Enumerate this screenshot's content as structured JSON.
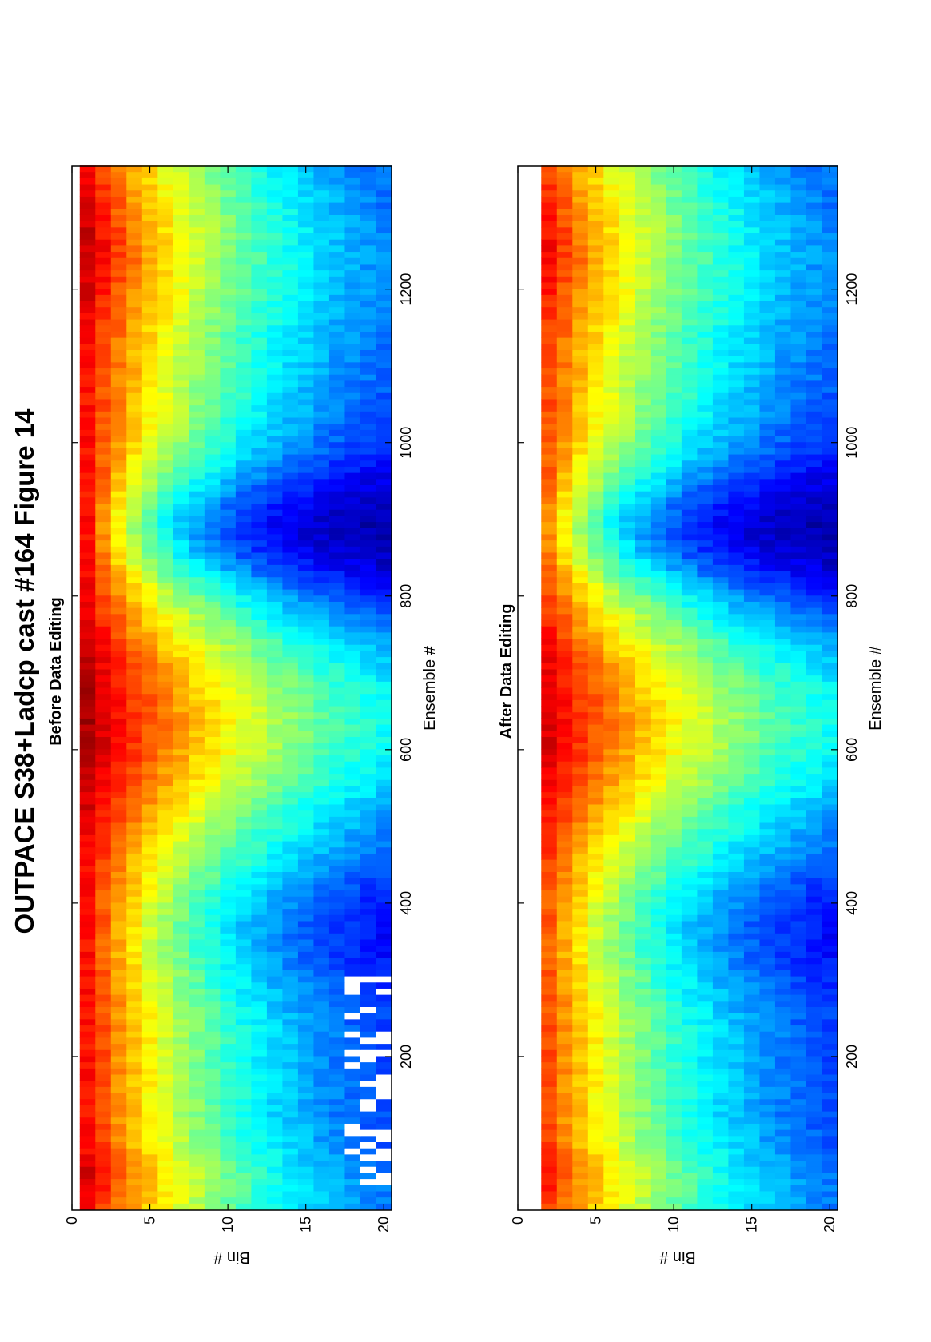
{
  "figure": {
    "title": "OUTPACE S38+Ladcp cast #164  Figure 14"
  },
  "chart_data": [
    {
      "type": "heatmap",
      "title": "Before Data Editing",
      "xlabel": "Ensemble #",
      "ylabel": "Bin #",
      "xlim": [
        0,
        1360
      ],
      "ylim": [
        0,
        20.5
      ],
      "x_ticks": [
        "200",
        "400",
        "600",
        "800",
        "1000",
        "1200"
      ],
      "y_ticks": [
        "0",
        "5",
        "10",
        "15",
        "20"
      ],
      "colormap": "jet",
      "features": {
        "ensemble_range": [
          1,
          1360
        ],
        "bin_range": [
          1,
          20
        ],
        "max_echo_ensembles": [
          40,
          560,
          700,
          1250
        ],
        "minimum_echo_ensemble_at_bottom_bins": 870,
        "invalid_data_ensembles": [
          30,
          300
        ]
      }
    },
    {
      "type": "heatmap",
      "title": "After Data Editing",
      "xlabel": "Ensemble #",
      "ylabel": "Bin #",
      "xlim": [
        0,
        1360
      ],
      "ylim": [
        0,
        20.5
      ],
      "x_ticks": [
        "200",
        "400",
        "600",
        "800",
        "1000",
        "1200"
      ],
      "y_ticks": [
        "0",
        "5",
        "10",
        "15",
        "20"
      ],
      "colormap": "jet",
      "features": {
        "ensemble_range": [
          1,
          1360
        ],
        "bin_range": [
          2,
          20
        ],
        "max_echo_ensembles": [
          40,
          560,
          700,
          1250
        ],
        "minimum_echo_ensemble_at_bottom_bins": 870
      }
    }
  ]
}
